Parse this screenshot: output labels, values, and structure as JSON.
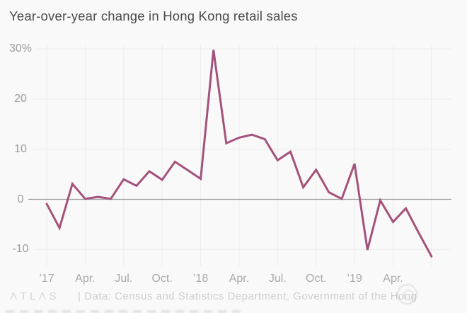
{
  "header": {
    "title": "Year-over-year change in Hong Kong retail sales"
  },
  "chart_data": {
    "type": "line",
    "title": "Year-over-year change in Hong Kong retail sales",
    "units": "percent change year-over-year",
    "x": [
      "Jan 2017",
      "Feb 2017",
      "Mar 2017",
      "Apr 2017",
      "May 2017",
      "Jun 2017",
      "Jul 2017",
      "Aug 2017",
      "Sep 2017",
      "Oct 2017",
      "Nov 2017",
      "Dec 2017",
      "Jan 2018",
      "Feb 2018",
      "Mar 2018",
      "Apr 2018",
      "May 2018",
      "Jun 2018",
      "Jul 2018",
      "Aug 2018",
      "Sep 2018",
      "Oct 2018",
      "Nov 2018",
      "Dec 2018",
      "Jan 2019",
      "Feb 2019",
      "Mar 2019",
      "Apr 2019",
      "May 2019",
      "Jun 2019",
      "Jul 2019"
    ],
    "values": [
      -0.9,
      -5.7,
      3.1,
      0.1,
      0.5,
      0.1,
      4.0,
      2.7,
      5.6,
      3.9,
      7.5,
      5.8,
      4.1,
      29.8,
      11.2,
      12.3,
      12.9,
      12.0,
      7.8,
      9.5,
      2.4,
      5.9,
      1.4,
      0.1,
      7.1,
      -10.1,
      -0.2,
      -4.5,
      -1.8,
      -6.7,
      -11.4
    ],
    "x_tick_labels": [
      "’17",
      "Apr.",
      "Jul.",
      "Oct.",
      "’18",
      "Apr.",
      "Jul.",
      "Oct.",
      "’19",
      "Apr."
    ],
    "x_tick_month_interval": 3,
    "y_ticks": [
      {
        "value": 30,
        "label": "30%"
      },
      {
        "value": 20,
        "label": "20"
      },
      {
        "value": 10,
        "label": "10"
      },
      {
        "value": 0,
        "label": "0"
      },
      {
        "value": -10,
        "label": "-10"
      }
    ],
    "ylim": [
      -13,
      31
    ],
    "grid": true,
    "legend_position": "none",
    "line_color": "#a4527b",
    "grid_color": "#ececec",
    "zero_line_color": "#9c9c9c"
  },
  "footer": {
    "logo_text": "ΛTLΛS",
    "attribution": "| Data: Census and Statistics Department, Government of the Hong"
  }
}
